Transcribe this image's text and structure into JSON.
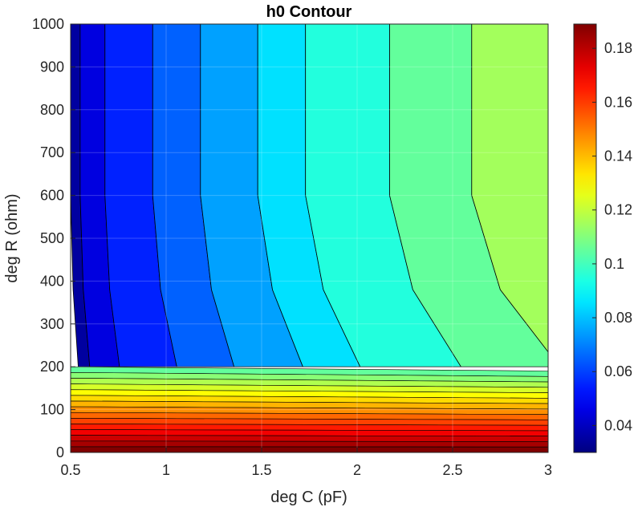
{
  "chart_data": {
    "type": "contour",
    "title": "h0 Contour",
    "xlabel": "deg C (pF)",
    "ylabel": "deg R (ohm)",
    "xlim": [
      0.5,
      3
    ],
    "ylim": [
      0,
      1000
    ],
    "x_ticks": [
      "0.5",
      "1",
      "1.5",
      "2",
      "2.5",
      "3"
    ],
    "y_ticks": [
      "0",
      "100",
      "200",
      "300",
      "400",
      "500",
      "600",
      "700",
      "800",
      "900",
      "1000"
    ],
    "grid": true,
    "colormap": "jet",
    "colorbar": {
      "range": [
        0.03,
        0.189
      ],
      "ticks": [
        "0.04",
        "0.06",
        "0.08",
        "0.1",
        "0.12",
        "0.14",
        "0.16",
        "0.18"
      ]
    },
    "upper_region_levels": [
      0.035,
      0.045,
      0.055,
      0.065,
      0.075,
      0.085,
      0.095,
      0.105,
      0.115
    ],
    "upper_band_left_edges_x": [
      0.5,
      0.55,
      0.68,
      0.93,
      1.18,
      1.48,
      1.73,
      2.17,
      2.6,
      3.0
    ],
    "lower_band_levels": [
      0.105,
      0.111,
      0.117,
      0.123,
      0.129,
      0.135,
      0.141,
      0.147,
      0.153,
      0.159,
      0.165,
      0.171,
      0.177,
      0.183,
      0.189
    ]
  }
}
